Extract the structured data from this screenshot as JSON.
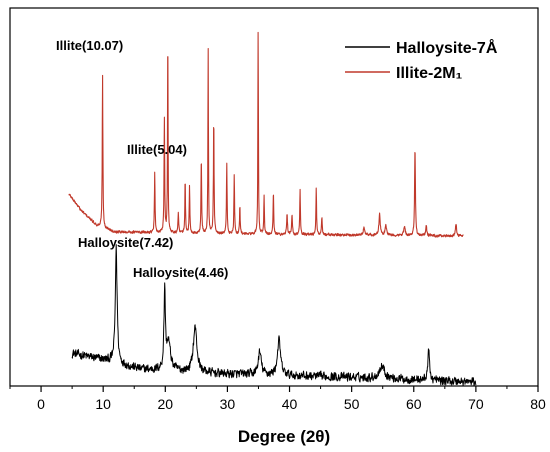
{
  "chart_data": {
    "type": "line",
    "xlabel": "Degree (2θ)",
    "xlim": [
      -5,
      80
    ],
    "x_ticks": [
      0,
      10,
      20,
      30,
      40,
      50,
      60,
      70,
      80
    ],
    "grid": false,
    "legend_position": "top-right",
    "series": [
      {
        "name": "Halloysite-7Å",
        "color": "#000000",
        "x_range": [
          5,
          70
        ],
        "baseline": [
          [
            5,
            0.18
          ],
          [
            10,
            0.14
          ],
          [
            16,
            0.08
          ],
          [
            30,
            0.05
          ],
          [
            50,
            0.03
          ],
          [
            70,
            0.0
          ]
        ],
        "noise": 0.035,
        "peaks": [
          {
            "x": 12.1,
            "height": 0.72,
            "width": 0.35
          },
          {
            "x": 19.9,
            "height": 0.5,
            "width": 0.25
          },
          {
            "x": 20.5,
            "height": 0.18,
            "width": 0.8
          },
          {
            "x": 24.8,
            "height": 0.28,
            "width": 0.7
          },
          {
            "x": 35.2,
            "height": 0.14,
            "width": 0.6
          },
          {
            "x": 38.3,
            "height": 0.22,
            "width": 0.6
          },
          {
            "x": 54.9,
            "height": 0.08,
            "width": 1.0
          },
          {
            "x": 62.4,
            "height": 0.18,
            "width": 0.35
          }
        ]
      },
      {
        "name": "Illite-2M₁",
        "color": "#c0392b",
        "x_range": [
          4.5,
          68
        ],
        "baseline": [
          [
            4.5,
            0.2
          ],
          [
            6.5,
            0.12
          ],
          [
            9,
            0.05
          ],
          [
            12,
            0.02
          ],
          [
            30,
            0.01
          ],
          [
            68,
            0.0
          ]
        ],
        "noise": 0.008,
        "peaks": [
          {
            "x": 9.9,
            "height": 0.72,
            "width": 0.12
          },
          {
            "x": 18.3,
            "height": 0.28,
            "width": 0.12
          },
          {
            "x": 19.85,
            "height": 0.55,
            "width": 0.12
          },
          {
            "x": 20.4,
            "height": 0.97,
            "width": 0.1
          },
          {
            "x": 22.1,
            "height": 0.1,
            "width": 0.12
          },
          {
            "x": 23.2,
            "height": 0.26,
            "width": 0.12
          },
          {
            "x": 23.9,
            "height": 0.22,
            "width": 0.12
          },
          {
            "x": 25.8,
            "height": 0.36,
            "width": 0.12
          },
          {
            "x": 26.9,
            "height": 0.88,
            "width": 0.1
          },
          {
            "x": 27.8,
            "height": 0.55,
            "width": 0.12
          },
          {
            "x": 29.9,
            "height": 0.34,
            "width": 0.12
          },
          {
            "x": 31.1,
            "height": 0.28,
            "width": 0.12
          },
          {
            "x": 32.0,
            "height": 0.14,
            "width": 0.12
          },
          {
            "x": 34.95,
            "height": 1.0,
            "width": 0.1
          },
          {
            "x": 35.9,
            "height": 0.18,
            "width": 0.12
          },
          {
            "x": 37.4,
            "height": 0.2,
            "width": 0.12
          },
          {
            "x": 39.6,
            "height": 0.1,
            "width": 0.15
          },
          {
            "x": 40.4,
            "height": 0.09,
            "width": 0.15
          },
          {
            "x": 41.7,
            "height": 0.22,
            "width": 0.12
          },
          {
            "x": 44.3,
            "height": 0.22,
            "width": 0.12
          },
          {
            "x": 45.2,
            "height": 0.08,
            "width": 0.15
          },
          {
            "x": 52.0,
            "height": 0.04,
            "width": 0.3
          },
          {
            "x": 54.5,
            "height": 0.1,
            "width": 0.25
          },
          {
            "x": 55.5,
            "height": 0.05,
            "width": 0.25
          },
          {
            "x": 58.5,
            "height": 0.04,
            "width": 0.3
          },
          {
            "x": 60.2,
            "height": 0.42,
            "width": 0.15
          },
          {
            "x": 62.0,
            "height": 0.05,
            "width": 0.2
          },
          {
            "x": 66.8,
            "height": 0.06,
            "width": 0.2
          }
        ]
      }
    ],
    "annotations": [
      {
        "text": "Illite(10.07)",
        "series": 1
      },
      {
        "text": "Illite(5.04)",
        "series": 1
      },
      {
        "text": "Halloysite(7.42)",
        "series": 0
      },
      {
        "text": "Halloysite(4.46)",
        "series": 0
      }
    ]
  }
}
